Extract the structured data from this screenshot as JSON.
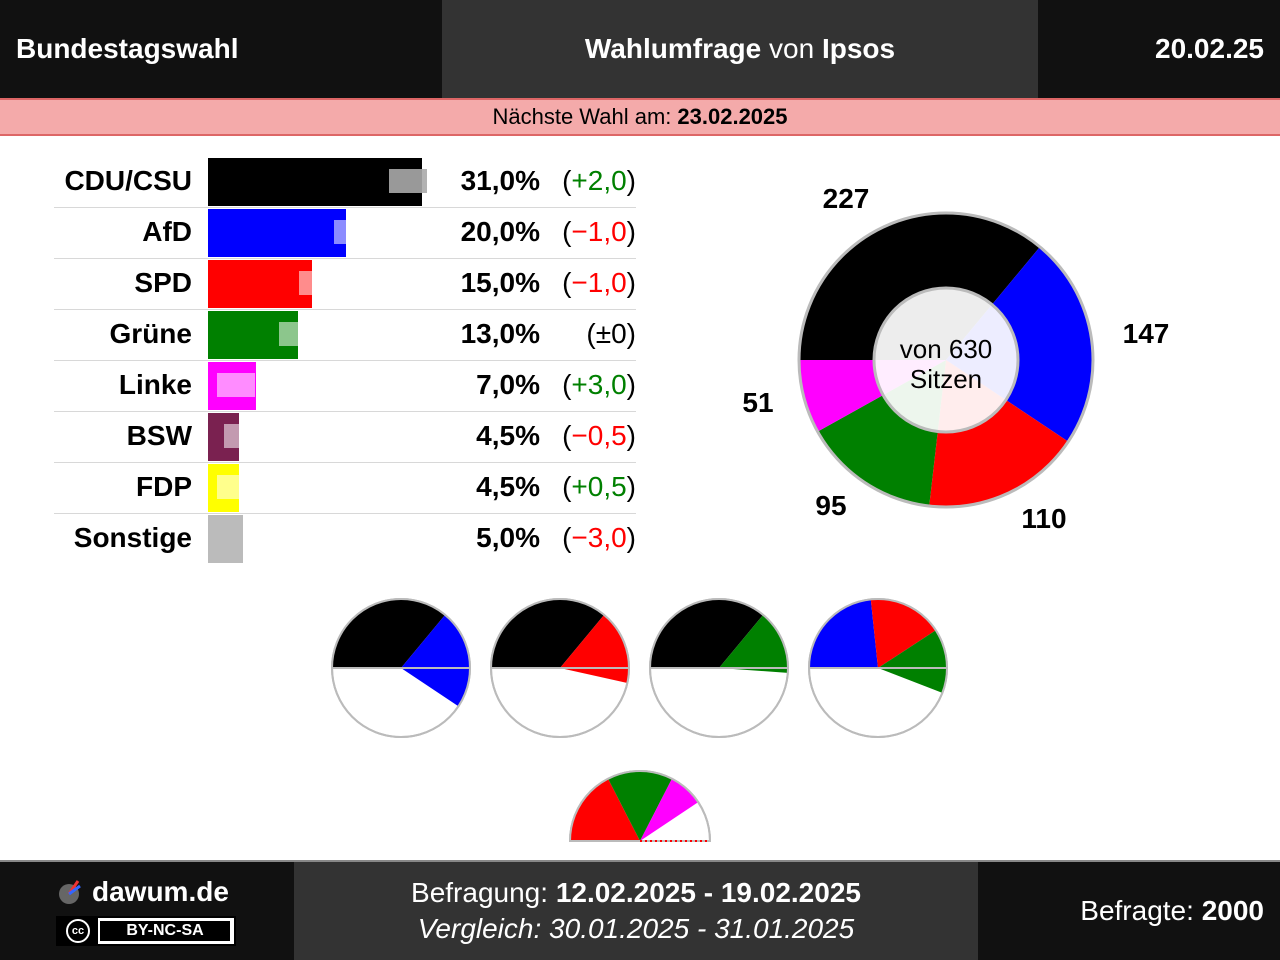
{
  "header": {
    "left": "Bundestagswahl",
    "mid_bold1": "Wahlumfrage",
    "mid_normal": "von",
    "mid_bold2": "Ipsos",
    "date": "20.02.25"
  },
  "next_election": {
    "label": "Nächste Wahl am:",
    "date": "23.02.2025"
  },
  "footer": {
    "site": "dawum.de",
    "license": "BY-NC-SA",
    "license_logo": "cc",
    "survey_label": "Befragung:",
    "survey_dates": "12.02.2025 - 19.02.2025",
    "compare_label": "Vergleich:",
    "compare_dates": "30.01.2025 - 31.01.2025",
    "respondents_label": "Befragte:",
    "respondents": "2000"
  },
  "colors": {
    "CDU/CSU": "#000000",
    "AfD": "#0000ff",
    "SPD": "#ff0000",
    "Grüne": "#008000",
    "Linke": "#ff00ff",
    "BSW": "#7a2150",
    "FDP": "#ffff00",
    "Sonstige": "#bbbbbb"
  },
  "chart_data": [
    {
      "type": "bar",
      "categories": [
        "CDU/CSU",
        "AfD",
        "SPD",
        "Grüne",
        "Linke",
        "BSW",
        "FDP",
        "Sonstige"
      ],
      "values": [
        31.0,
        20.0,
        15.0,
        13.0,
        7.0,
        4.5,
        4.5,
        5.0
      ],
      "previous": [
        29.0,
        21.0,
        16.0,
        13.0,
        4.0,
        5.0,
        4.0,
        8.0
      ],
      "value_labels": [
        "31,0%",
        "20,0%",
        "15,0%",
        "13,0%",
        "7,0%",
        "4,5%",
        "4,5%",
        "5,0%"
      ],
      "change_labels": [
        "(+2,0)",
        "(−1,0)",
        "(−1,0)",
        "(±0)",
        "(+3,0)",
        "(−0,5)",
        "(+0,5)",
        "(−3,0)"
      ],
      "change_direction": [
        "up",
        "down",
        "down",
        "neutral",
        "up",
        "down",
        "up",
        "down"
      ]
    },
    {
      "type": "pie",
      "subtype": "donut",
      "center_text_1": "von 630",
      "center_text_2": "Sitzen",
      "categories": [
        "CDU/CSU",
        "AfD",
        "SPD",
        "Grüne",
        "Linke"
      ],
      "values": [
        227,
        147,
        110,
        95,
        51
      ],
      "labels": [
        "227",
        "147",
        "110",
        "95",
        "51"
      ]
    },
    {
      "type": "pie",
      "subtype": "coalitions",
      "total": 630,
      "coalitions": [
        {
          "parties": [
            "CDU/CSU",
            "AfD"
          ],
          "seats": [
            227,
            147
          ]
        },
        {
          "parties": [
            "CDU/CSU",
            "SPD"
          ],
          "seats": [
            227,
            110
          ]
        },
        {
          "parties": [
            "CDU/CSU",
            "Grüne"
          ],
          "seats": [
            227,
            95
          ]
        },
        {
          "parties": [
            "AfD",
            "SPD",
            "Grüne"
          ],
          "seats": [
            147,
            110,
            95
          ]
        },
        {
          "parties": [
            "SPD",
            "Grüne",
            "Linke"
          ],
          "seats": [
            110,
            95,
            51
          ]
        }
      ]
    }
  ]
}
